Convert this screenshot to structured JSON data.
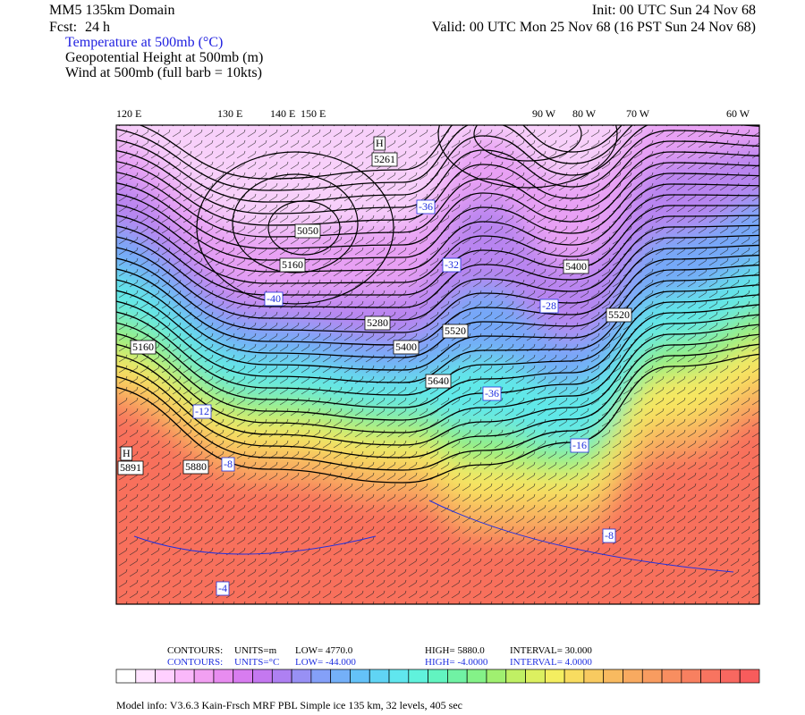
{
  "header": {
    "domain": "MM5 135km Domain",
    "init": "Init: 00 UTC Sun 24 Nov 68",
    "fcst_label": "Fcst:",
    "fcst_value": "24 h",
    "valid": "Valid: 00 UTC Mon 25 Nov 68 (16 PST Sun 24 Nov 68)",
    "fields": [
      "Temperature at 500mb (°C)",
      "Geopotential Height at 500mb (m)",
      "Wind at 500mb (full barb = 10kts)"
    ]
  },
  "longitude_labels": [
    "120 E",
    "130 E",
    "140 E",
    "150 E",
    "90 W",
    "80 W",
    "70 W",
    "60 W"
  ],
  "map_labels": {
    "height": [
      "H",
      "5261",
      "5050",
      "5160",
      "5280",
      "5400",
      "5520",
      "5640",
      "5400",
      "5520",
      "5160",
      "H",
      "5891",
      "5880"
    ],
    "temperature": [
      "-36",
      "-40",
      "-32",
      "-28",
      "-36",
      "-12",
      "-8",
      "-16",
      "-8",
      "-4"
    ]
  },
  "contour_info": [
    [
      "CONTOURS:",
      "UNITS=m",
      "LOW=   4770.0",
      "HIGH=  5880.0",
      "INTERVAL=    30.000"
    ],
    [
      "CONTOURS:",
      "UNITS=°C",
      "LOW=  -44.000",
      "HIGH=  -4.0000",
      "INTERVAL=    4.0000"
    ]
  ],
  "colorbar": {
    "colors": [
      "#ffffff",
      "#ffe4ff",
      "#ffd0ff",
      "#fab8fa",
      "#f2a0f2",
      "#e88cf0",
      "#d87cf0",
      "#c478f0",
      "#ae80f2",
      "#9890f4",
      "#84a0f8",
      "#74b0f8",
      "#64c2f8",
      "#60d4f4",
      "#60e6ee",
      "#60f2dc",
      "#62f4c0",
      "#70f2a4",
      "#84f288",
      "#a0f070",
      "#c0f064",
      "#dcf060",
      "#f4ee60",
      "#f8dc60",
      "#f8ca60",
      "#f8ba60",
      "#f8aa60",
      "#f89c60",
      "#f88e60",
      "#f88060",
      "#f87460",
      "#f86860",
      "#f85c5c"
    ]
  },
  "model_info": "Model info: V3.6.3 Kain-Frsch MRF PBL     Simple ice   135 km,  32 levels,  405 sec"
}
